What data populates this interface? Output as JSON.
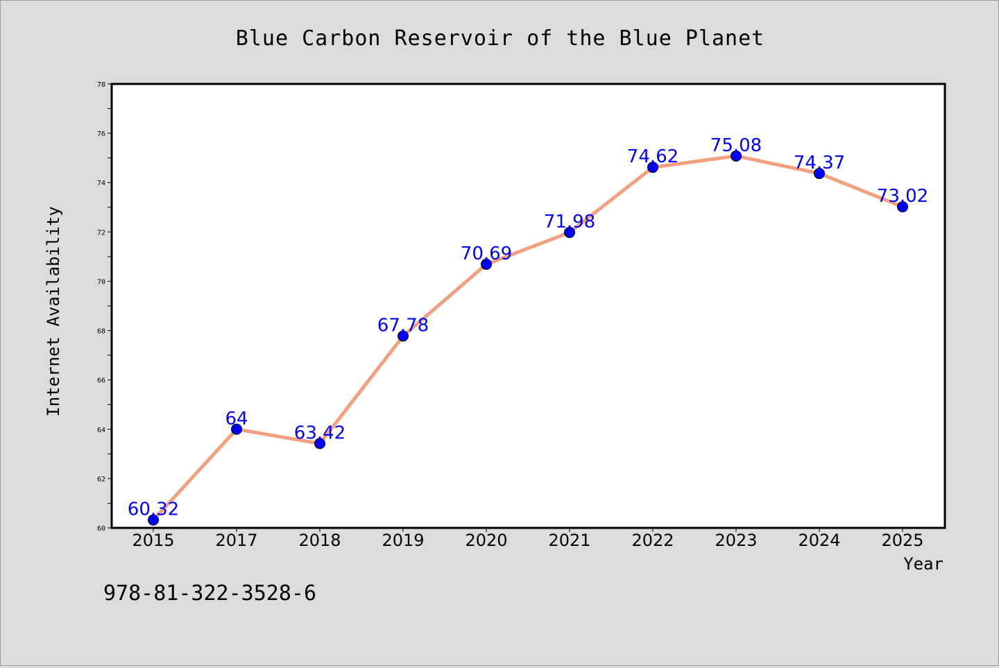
{
  "chart_data": {
    "type": "line",
    "title": "Blue Carbon Reservoir of the Blue Planet",
    "xlabel": "Year",
    "ylabel": "Internet Availability",
    "categories": [
      "2015",
      "2017",
      "2018",
      "2019",
      "2020",
      "2021",
      "2022",
      "2023",
      "2024",
      "2025"
    ],
    "series": [
      {
        "values": [
          60.32,
          64,
          63.42,
          67.78,
          70.69,
          71.98,
          74.62,
          75.08,
          74.37,
          73.02
        ],
        "labels": [
          "60.32",
          "64",
          "63.42",
          "67.78",
          "70.69",
          "71.98",
          "74.62",
          "75.08",
          "74.37",
          "73.02"
        ]
      }
    ],
    "ylim": [
      60,
      78
    ],
    "yticks": [
      "60",
      "62",
      "64",
      "66",
      "68",
      "70",
      "72",
      "74",
      "76",
      "78"
    ],
    "grid": false,
    "legend": "none",
    "colors": {
      "line": "#f4a07f",
      "marker": "#0000ff",
      "data_label": "#0000ff",
      "background": "#dcdcdc",
      "plot_area": "#ffffff"
    }
  },
  "annotation": "978-81-322-3528-6"
}
